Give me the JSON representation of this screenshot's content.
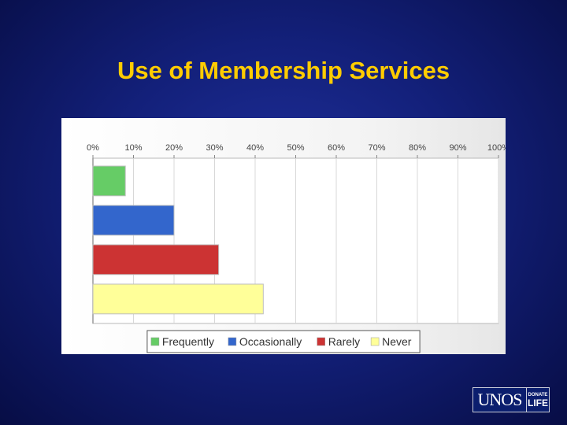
{
  "slide": {
    "title": "Use of Membership Services"
  },
  "logo": {
    "main": "UNOS",
    "donate": "DONATE",
    "life": "LIFE"
  },
  "chart_data": {
    "type": "bar",
    "orientation": "horizontal",
    "x_ticks": [
      "0%",
      "10%",
      "20%",
      "30%",
      "40%",
      "50%",
      "60%",
      "70%",
      "80%",
      "90%",
      "100%"
    ],
    "xlim": [
      0,
      100
    ],
    "grid": true,
    "legend_position": "bottom",
    "series": [
      {
        "name": "Frequently",
        "value": 8,
        "color": "#66cc66"
      },
      {
        "name": "Occasionally",
        "value": 20,
        "color": "#3366cc"
      },
      {
        "name": "Rarely",
        "value": 31,
        "color": "#cc3333"
      },
      {
        "name": "Never",
        "value": 42,
        "color": "#ffff99"
      }
    ]
  }
}
